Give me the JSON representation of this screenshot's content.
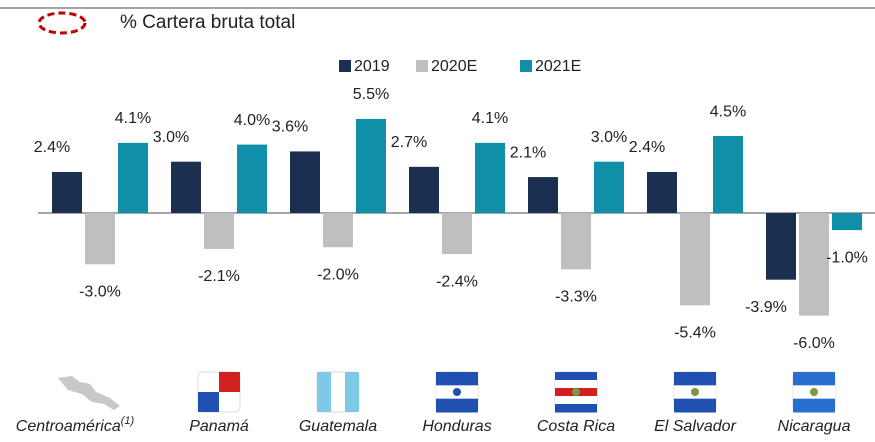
{
  "chart_data": {
    "type": "bar",
    "title": "% Cartera bruta total",
    "categories": [
      "Centroamérica",
      "Panamá",
      "Guatemala",
      "Honduras",
      "Costa Rica",
      "El Salvador",
      "Nicaragua"
    ],
    "category_note": "(1)",
    "series": [
      {
        "name": "2019",
        "color": "#1b3050",
        "values": [
          2.4,
          3.0,
          3.6,
          2.7,
          2.1,
          2.4,
          -3.9
        ],
        "value_labels": [
          "2.4%",
          "3.0%",
          "3.6%",
          "2.7%",
          "2.1%",
          "2.4%",
          "-3.9%"
        ]
      },
      {
        "name": "2020E",
        "color": "#bfbfbf",
        "values": [
          -3.0,
          -2.1,
          -2.0,
          -2.4,
          -3.3,
          -5.4,
          -6.0
        ],
        "value_labels": [
          "-3.0%",
          "-2.1%",
          "-2.0%",
          "-2.4%",
          "-3.3%",
          "-5.4%",
          "-6.0%"
        ]
      },
      {
        "name": "2021E",
        "color": "#0f8fa8",
        "values": [
          4.1,
          4.0,
          5.5,
          4.1,
          3.0,
          4.5,
          -1.0
        ],
        "value_labels": [
          "4.1%",
          "4.0%",
          "5.5%",
          "4.1%",
          "3.0%",
          "4.5%",
          "-1.0%"
        ]
      }
    ]
  }
}
